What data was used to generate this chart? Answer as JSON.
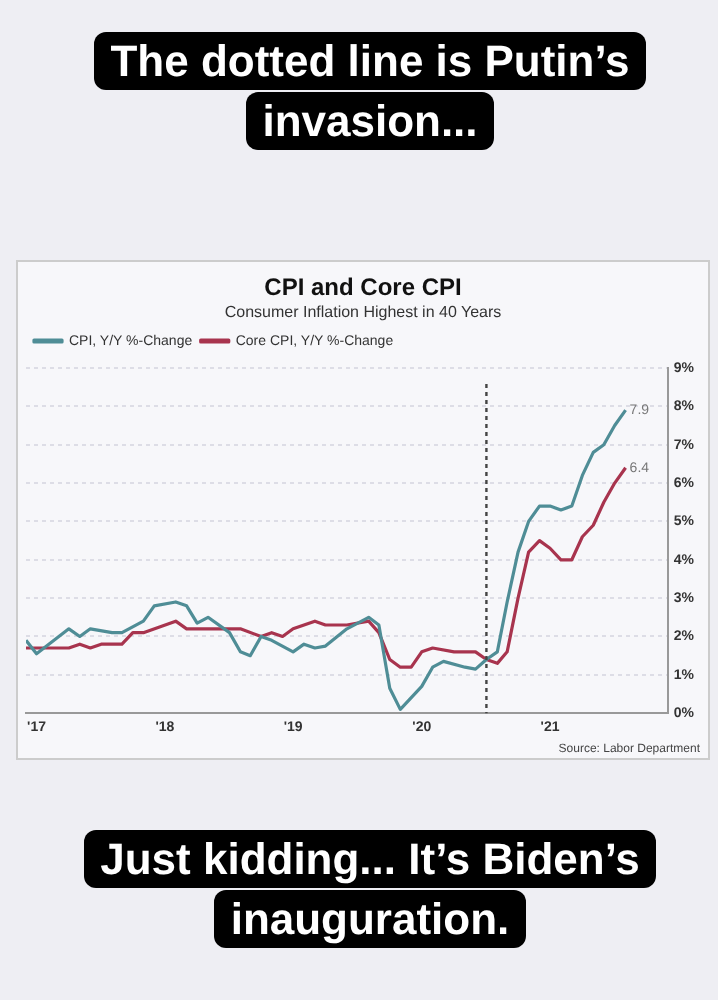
{
  "chart_data": {
    "type": "line",
    "title": "CPI and Core CPI",
    "subtitle": "Consumer Inflation Highest in 40 Years",
    "annotations": [
      "The dotted line is Putin’s invasion...",
      "Just kidding... It’s Biden’s inauguration.",
      "Source: Labor Department",
      {
        "text": "7.9",
        "x": "2022-02",
        "y": 7.9
      },
      {
        "text": "6.4",
        "x": "2022-02",
        "y": 6.4
      }
    ],
    "series": [
      {
        "name": "CPI, Y/Y %-Change",
        "color": "#4f8d96",
        "x": [
          "2017-06",
          "2017-07",
          "2017-10",
          "2017-11",
          "2017-12",
          "2018-02",
          "2018-03",
          "2018-05",
          "2018-06",
          "2018-08",
          "2018-09",
          "2018-10",
          "2018-11",
          "2019-01",
          "2019-02",
          "2019-03",
          "2019-04",
          "2019-05",
          "2019-07",
          "2019-08",
          "2019-09",
          "2019-10",
          "2019-12",
          "2020-02",
          "2020-03",
          "2020-04",
          "2020-05",
          "2020-07",
          "2020-08",
          "2020-09",
          "2020-11",
          "2020-12",
          "2021-01",
          "2021-02",
          "2021-03",
          "2021-04",
          "2021-05",
          "2021-06",
          "2021-07",
          "2021-08",
          "2021-09",
          "2021-10",
          "2021-11",
          "2021-12",
          "2022-01",
          "2022-02"
        ],
        "values": [
          1.9,
          1.55,
          2.2,
          2.0,
          2.2,
          2.1,
          2.1,
          2.4,
          2.8,
          2.9,
          2.8,
          2.35,
          2.5,
          2.1,
          1.6,
          1.5,
          2.0,
          1.9,
          1.6,
          1.8,
          1.7,
          1.75,
          2.2,
          2.5,
          2.3,
          0.65,
          0.1,
          0.7,
          1.2,
          1.35,
          1.2,
          1.15,
          1.4,
          1.6,
          2.9,
          4.2,
          5.0,
          5.4,
          5.4,
          5.3,
          5.4,
          6.2,
          6.8,
          7.0,
          7.5,
          7.9
        ]
      },
      {
        "name": "Core CPI, Y/Y %-Change",
        "color": "#a8344e",
        "x": [
          "2017-06",
          "2017-08",
          "2017-10",
          "2017-11",
          "2017-12",
          "2018-01",
          "2018-03",
          "2018-04",
          "2018-05",
          "2018-08",
          "2018-09",
          "2018-11",
          "2019-01",
          "2019-02",
          "2019-04",
          "2019-05",
          "2019-06",
          "2019-07",
          "2019-09",
          "2019-10",
          "2019-12",
          "2020-02",
          "2020-03",
          "2020-04",
          "2020-05",
          "2020-06",
          "2020-07",
          "2020-08",
          "2020-10",
          "2020-12",
          "2021-01",
          "2021-02",
          "2021-03",
          "2021-04",
          "2021-05",
          "2021-06",
          "2021-07",
          "2021-08",
          "2021-09",
          "2021-10",
          "2021-11",
          "2021-12",
          "2022-01",
          "2022-02"
        ],
        "values": [
          1.7,
          1.7,
          1.7,
          1.8,
          1.7,
          1.8,
          1.8,
          2.1,
          2.1,
          2.4,
          2.2,
          2.2,
          2.2,
          2.2,
          2.0,
          2.1,
          2.0,
          2.2,
          2.4,
          2.3,
          2.3,
          2.4,
          2.1,
          1.4,
          1.2,
          1.2,
          1.6,
          1.7,
          1.6,
          1.6,
          1.4,
          1.3,
          1.6,
          3.0,
          4.2,
          4.5,
          4.3,
          4.0,
          4.0,
          4.6,
          4.9,
          5.5,
          6.0,
          6.4
        ]
      }
    ],
    "xlim": [
      "2017-06",
      "2022-06"
    ],
    "xticks": [
      {
        "value": "2017-07",
        "label": "'17"
      },
      {
        "value": "2018-07",
        "label": "'18"
      },
      {
        "value": "2019-07",
        "label": "'19"
      },
      {
        "value": "2020-07",
        "label": "'20"
      },
      {
        "value": "2021-07",
        "label": "'21"
      }
    ],
    "ylim": [
      0,
      9
    ],
    "yticks": [
      {
        "value": 0,
        "label": "0%"
      },
      {
        "value": 1,
        "label": "1%"
      },
      {
        "value": 2,
        "label": "2%"
      },
      {
        "value": 3,
        "label": "3%"
      },
      {
        "value": 4,
        "label": "4%"
      },
      {
        "value": 5,
        "label": "5%"
      },
      {
        "value": 6,
        "label": "6%"
      },
      {
        "value": 7,
        "label": "7%"
      },
      {
        "value": 8,
        "label": "8%"
      },
      {
        "value": 9,
        "label": "9%"
      }
    ],
    "ref_lines": [
      {
        "axis": "x",
        "value": "2021-01",
        "line_style": "dotted",
        "color": "#444444"
      }
    ],
    "grid": "y",
    "legend": "top left",
    "marker": "none",
    "line_style": "solid"
  }
}
